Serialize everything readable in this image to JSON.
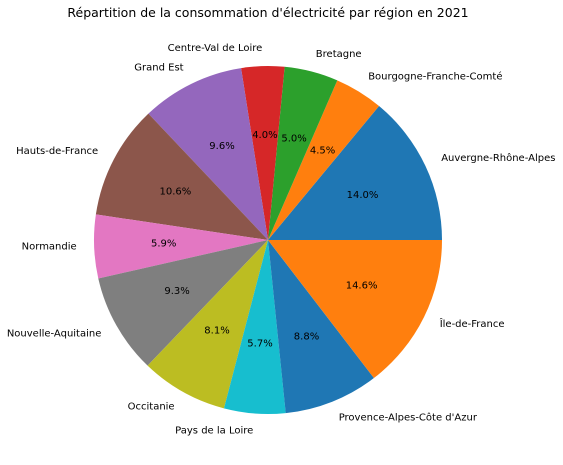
{
  "chart_data": {
    "type": "pie",
    "title": "Répartition de la consommation d'électricité par région en 2021",
    "slices": [
      {
        "label": "Auvergne-Rhône-Alpes",
        "value": 14.0,
        "pct_label": "14.0%",
        "color": "#1f77b4"
      },
      {
        "label": "Bourgogne-Franche-Comté",
        "value": 4.5,
        "pct_label": "4.5%",
        "color": "#ff7f0e"
      },
      {
        "label": "Bretagne",
        "value": 5.0,
        "pct_label": "5.0%",
        "color": "#2ca02c"
      },
      {
        "label": "Centre-Val de Loire",
        "value": 4.0,
        "pct_label": "4.0%",
        "color": "#d62728"
      },
      {
        "label": "Grand Est",
        "value": 9.6,
        "pct_label": "9.6%",
        "color": "#9467bd"
      },
      {
        "label": "Hauts-de-France",
        "value": 10.6,
        "pct_label": "10.6%",
        "color": "#8c564b"
      },
      {
        "label": "Normandie",
        "value": 5.9,
        "pct_label": "5.9%",
        "color": "#e377c2"
      },
      {
        "label": "Nouvelle-Aquitaine",
        "value": 9.3,
        "pct_label": "9.3%",
        "color": "#7f7f7f"
      },
      {
        "label": "Occitanie",
        "value": 8.1,
        "pct_label": "8.1%",
        "color": "#bcbd22"
      },
      {
        "label": "Pays de la Loire",
        "value": 5.7,
        "pct_label": "5.7%",
        "color": "#17becf"
      },
      {
        "label": "Provence-Alpes-Côte d'Azur",
        "value": 8.8,
        "pct_label": "8.8%",
        "color": "#1f77b4"
      },
      {
        "label": "Île-de-France",
        "value": 14.6,
        "pct_label": "14.6%",
        "color": "#ff7f0e"
      }
    ],
    "start_angle_deg": 0,
    "direction": "counterclockwise"
  }
}
